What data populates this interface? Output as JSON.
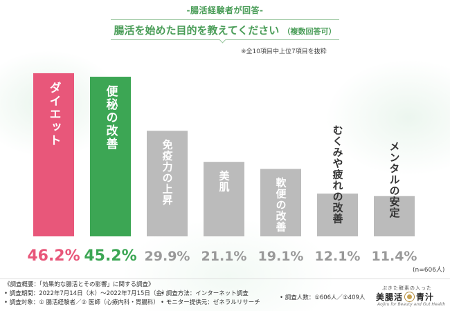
{
  "header": {
    "label": "-腸活経験者が回答-",
    "title": "腸活を始めた目的を教えてください",
    "title_suffix": "（複数回答可）",
    "note": "※全10項目中上位7項目を抜粋"
  },
  "chart_data": {
    "type": "bar",
    "title": "腸活を始めた目的を教えてください（複数回答可）",
    "categories": [
      "ダイエット",
      "便秘の改善",
      "免疫力の上昇",
      "美肌",
      "軟便の改善",
      "むくみや疲れの改善",
      "メンタルの安定"
    ],
    "values": [
      46.2,
      45.2,
      29.9,
      21.1,
      19.1,
      12.1,
      11.4
    ],
    "value_labels": [
      "46.2%",
      "45.2%",
      "29.9%",
      "21.1%",
      "19.1%",
      "12.1%",
      "11.4%"
    ],
    "unit": "%",
    "ylim": [
      0,
      50
    ],
    "grid": false,
    "colors": [
      "#e8577a",
      "#3ca654",
      "#bbbbbb",
      "#bbbbbb",
      "#bbbbbb",
      "#bbbbbb",
      "#bbbbbb"
    ],
    "label_colors": [
      "#e8577a",
      "#3ca654",
      "#999999",
      "#999999",
      "#999999",
      "#999999",
      "#999999"
    ]
  },
  "n_label": "(n=606人)",
  "footer": {
    "survey_overview": "《調査概要：「効果的な腸活とその影響」に関する調査》",
    "survey_period": "• 調査期間：2022年7月14日（木）〜2022年7月15日（金）",
    "survey_target": "• 調査対象：① 腸活経験者／② 医師（心療内科・胃腸科）",
    "survey_method": "• 調査方法：インターネット調査",
    "monitor_provider": "• モニター提供元：ゼネラルリサーチ",
    "respondents": "• 調査人数：①606人／②409人"
  },
  "brand": {
    "tagline": "ぷきた酵素の入った",
    "name_left": "美腸活",
    "name_right": "青汁",
    "subtitle": "Aojiru for Beauty and Gut Health"
  }
}
